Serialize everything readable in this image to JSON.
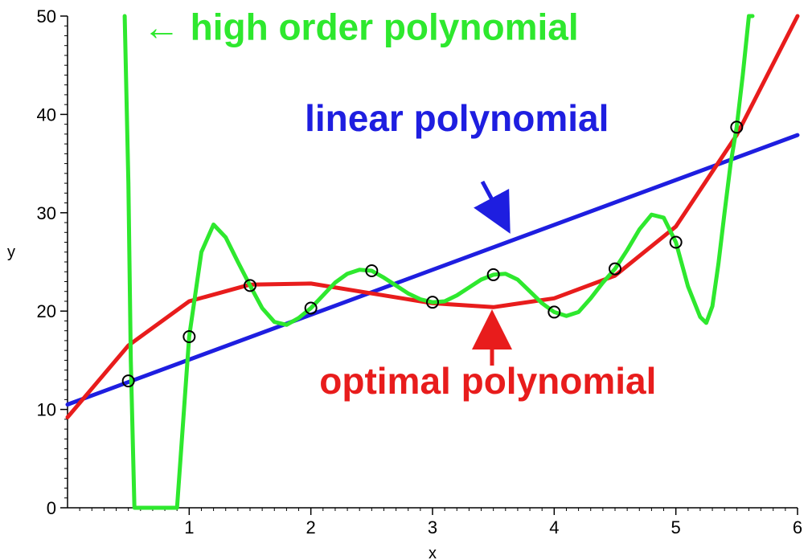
{
  "chart_data": {
    "type": "line",
    "title": "",
    "xlabel": "x",
    "ylabel": "y",
    "xlim": [
      0,
      6
    ],
    "ylim": [
      0,
      50
    ],
    "x_ticks": [
      "1",
      "2",
      "3",
      "4",
      "5",
      "6"
    ],
    "y_ticks": [
      "0",
      "10",
      "20",
      "30",
      "40",
      "50"
    ],
    "grid": false,
    "points": {
      "x": [
        0.5,
        1.0,
        1.5,
        2.0,
        2.5,
        3.0,
        3.5,
        4.0,
        4.5,
        5.0,
        5.5
      ],
      "y": [
        12.9,
        17.4,
        22.6,
        20.3,
        24.1,
        20.9,
        23.7,
        19.9,
        24.3,
        27.0,
        38.7
      ]
    },
    "series": [
      {
        "type": "line",
        "color": "#1e1ee0",
        "x": [
          0,
          6
        ],
        "y": [
          10.5,
          37.9
        ]
      },
      {
        "type": "line",
        "color": "#e81c1c",
        "x": [
          0,
          0.5,
          1.0,
          1.5,
          2.0,
          2.5,
          3.0,
          3.5,
          4.0,
          4.5,
          5.0,
          5.5,
          6.0
        ],
        "y": [
          9.2,
          16.5,
          21.0,
          22.7,
          22.8,
          21.8,
          20.8,
          20.4,
          21.3,
          23.6,
          28.6,
          37.9,
          50.0
        ]
      },
      {
        "type": "line",
        "color": "#2ee82e",
        "x": [
          0.47,
          0.5,
          0.52,
          0.55,
          0.6,
          0.7,
          0.78,
          0.85,
          0.9,
          1.0,
          1.1,
          1.2,
          1.3,
          1.4,
          1.5,
          1.6,
          1.7,
          1.8,
          1.9,
          2.0,
          2.1,
          2.2,
          2.3,
          2.4,
          2.5,
          2.6,
          2.7,
          2.8,
          2.9,
          3.0,
          3.1,
          3.2,
          3.3,
          3.4,
          3.5,
          3.6,
          3.7,
          3.8,
          3.9,
          4.0,
          4.1,
          4.2,
          4.3,
          4.4,
          4.5,
          4.6,
          4.7,
          4.8,
          4.9,
          5.0,
          5.1,
          5.2,
          5.25,
          5.3,
          5.35,
          5.4,
          5.45,
          5.5,
          5.55,
          5.6,
          5.63
        ],
        "y": [
          50,
          33.0,
          15.0,
          0,
          0,
          0,
          0,
          0,
          0,
          17.4,
          26.0,
          28.8,
          27.5,
          25.0,
          22.6,
          20.3,
          18.9,
          18.6,
          19.3,
          20.3,
          21.6,
          22.9,
          23.8,
          24.2,
          24.1,
          23.4,
          22.6,
          21.8,
          21.2,
          20.9,
          21.0,
          21.6,
          22.4,
          23.2,
          23.7,
          23.8,
          23.2,
          22.0,
          20.8,
          19.9,
          19.5,
          19.9,
          21.3,
          22.9,
          24.3,
          26.2,
          28.3,
          29.8,
          29.5,
          27.0,
          22.5,
          19.4,
          18.8,
          20.5,
          24.8,
          30.0,
          35.0,
          38.7,
          44.0,
          50.0,
          50.0
        ]
      }
    ],
    "annotations": [
      {
        "text": "← high order polynomial",
        "color": "#2ee82e",
        "x": 0.62,
        "y": 47.6
      },
      {
        "text": "linear polynomial",
        "color": "#1e1ee0",
        "x": 1.95,
        "y": 38.3
      },
      {
        "text": "optimal polynomial",
        "color": "#e81c1c",
        "x": 2.07,
        "y": 11.6
      }
    ]
  }
}
